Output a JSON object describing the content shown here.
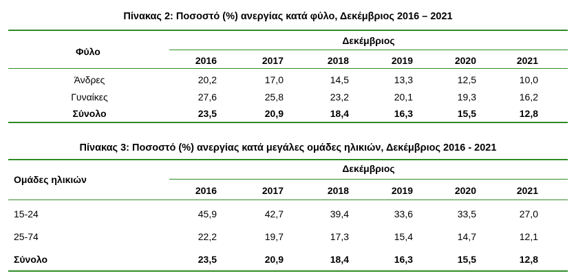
{
  "table2": {
    "title": "Πίνακας 2: Ποσοστό (%) ανεργίας κατά φύλο, Δεκέμβριος 2016 – 2021",
    "row_header": "Φύλο",
    "group_header": "Δεκέμβριος",
    "years": [
      "2016",
      "2017",
      "2018",
      "2019",
      "2020",
      "2021"
    ],
    "rows": [
      {
        "label": "Άνδρες",
        "values": [
          "20,2",
          "17,0",
          "14,5",
          "13,3",
          "12,5",
          "10,0"
        ]
      },
      {
        "label": "Γυναίκες",
        "values": [
          "27,6",
          "25,8",
          "23,2",
          "20,1",
          "19,3",
          "16,2"
        ]
      },
      {
        "label": "Σύνολο",
        "values": [
          "23,5",
          "20,9",
          "18,4",
          "16,3",
          "15,5",
          "12,8"
        ]
      }
    ]
  },
  "table3": {
    "title": "Πίνακας 3: Ποσοστό (%) ανεργίας κατά μεγάλες ομάδες ηλικιών, Δεκέμβριος 2016 - 2021",
    "row_header": "Ομάδες ηλικιών",
    "group_header": "Δεκέμβριος",
    "years": [
      "2016",
      "2017",
      "2018",
      "2019",
      "2020",
      "2021"
    ],
    "rows": [
      {
        "label": "15-24",
        "values": [
          "45,9",
          "42,7",
          "39,4",
          "33,6",
          "33,5",
          "27,0"
        ]
      },
      {
        "label": "25-74",
        "values": [
          "22,2",
          "19,7",
          "17,3",
          "15,4",
          "14,7",
          "12,1"
        ]
      },
      {
        "label": "Σύνολο",
        "values": [
          "23,5",
          "20,9",
          "18,4",
          "16,3",
          "15,5",
          "12,8"
        ]
      }
    ]
  },
  "colors": {
    "rule": "#2e8b24"
  }
}
